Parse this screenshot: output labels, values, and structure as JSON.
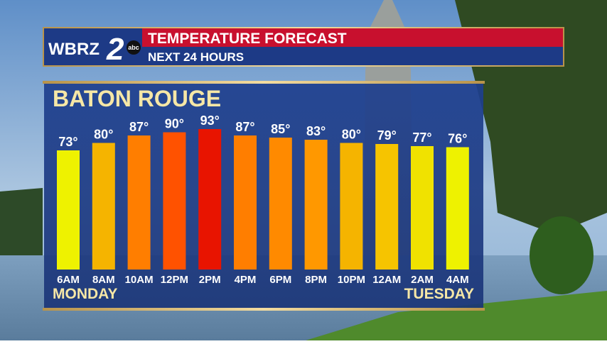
{
  "logo": {
    "call": "WBRZ",
    "channel": "2",
    "network": "abc"
  },
  "chart_data": {
    "type": "bar",
    "title": "TEMPERATURE FORECAST",
    "subtitle": "NEXT 24 HOURS",
    "location": "BATON ROUGE",
    "categories": [
      "6AM",
      "8AM",
      "10AM",
      "12PM",
      "2PM",
      "4PM",
      "6PM",
      "8PM",
      "10PM",
      "12AM",
      "2AM",
      "4AM"
    ],
    "values": [
      73,
      80,
      87,
      90,
      93,
      87,
      85,
      83,
      80,
      79,
      77,
      76
    ],
    "value_labels": [
      "73°",
      "80°",
      "87°",
      "90°",
      "93°",
      "87°",
      "85°",
      "83°",
      "80°",
      "79°",
      "77°",
      "76°"
    ],
    "colors": [
      "#eef200",
      "#f5b400",
      "#ff7e00",
      "#ff5200",
      "#e81400",
      "#ff7e00",
      "#ff8a00",
      "#ff9800",
      "#f5b400",
      "#f6c400",
      "#f0e200",
      "#eef200"
    ],
    "day_labels": [
      "MONDAY",
      "TUESDAY"
    ]
  }
}
